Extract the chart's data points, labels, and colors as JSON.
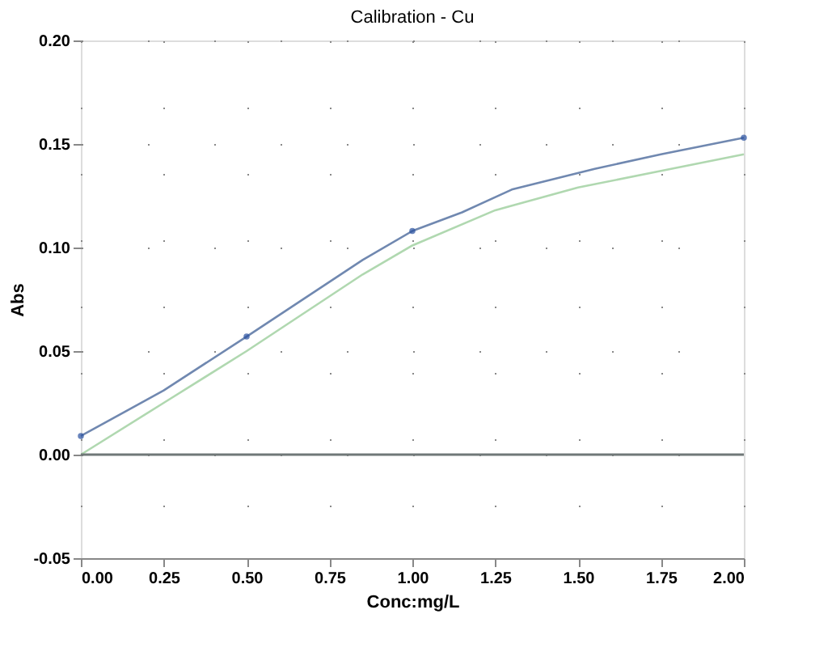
{
  "chart_data": {
    "type": "line",
    "title": "Calibration - Cu",
    "xlabel": "Conc:mg/L",
    "ylabel": "Abs",
    "xlim": [
      0,
      2
    ],
    "xticks": [
      {
        "value": 0,
        "label": "0.00"
      },
      0.25,
      {
        "value": 0.5,
        "label": "0.50"
      },
      0.75,
      {
        "value": 1,
        "label": "1.00"
      },
      1.25,
      {
        "value": 1.5,
        "label": "1.50"
      },
      1.75,
      {
        "value": 2,
        "label": "2.00"
      }
    ],
    "ylim": [
      -0.05,
      0.2
    ],
    "yticks": [
      -0.05,
      {
        "value": 0,
        "label": "0.00"
      },
      0.05,
      {
        "value": 0.1,
        "label": "0.10"
      },
      0.15,
      {
        "value": 0.2,
        "label": "0.20"
      }
    ],
    "grid": true,
    "ref_lines": [
      {
        "axis": "y",
        "value": 0,
        "color": "#707878"
      }
    ],
    "series": [
      {
        "color": "#7088b0",
        "marker": "none",
        "x": [
          0,
          0.25,
          0.5,
          0.85,
          1.0,
          1.15,
          1.3,
          1.55,
          1.75,
          2.0
        ],
        "values": [
          0.009,
          0.031,
          0.057,
          0.094,
          0.108,
          0.117,
          0.128,
          0.138,
          0.145,
          0.153
        ]
      },
      {
        "type": "scatter",
        "color": "#2850a0",
        "marker": "circle",
        "x": [
          0,
          0.5,
          1.0,
          2.0
        ],
        "values": [
          0.009,
          0.057,
          0.108,
          0.153
        ]
      },
      {
        "color": "#b0d8b0",
        "marker": "none",
        "x": [
          0,
          0.25,
          0.5,
          0.85,
          1.0,
          1.25,
          1.5,
          1.75,
          2.0
        ],
        "values": [
          0.0,
          0.025,
          0.05,
          0.087,
          0.101,
          0.118,
          0.129,
          0.137,
          0.145
        ]
      }
    ]
  }
}
